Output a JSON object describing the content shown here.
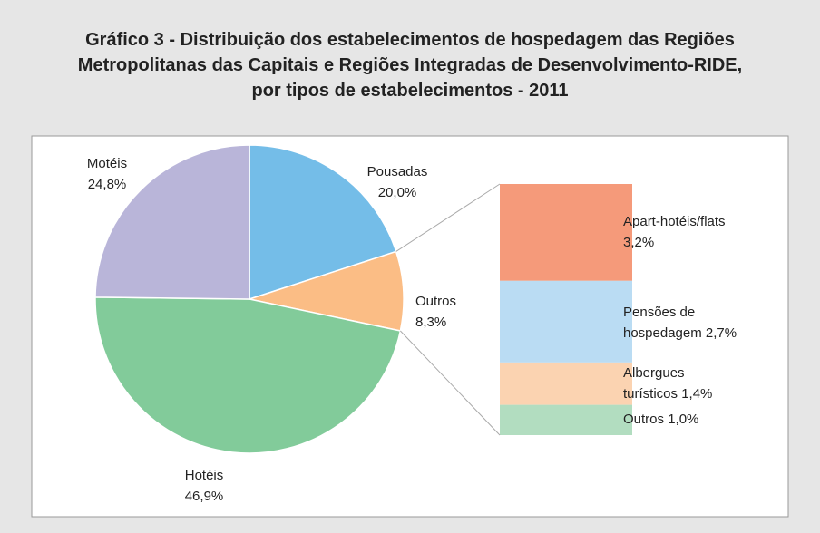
{
  "chart_data": [
    {
      "type": "pie",
      "title": "Gráfico 3 - Distribuição dos estabelecimentos de hospedagem das Regiões Metropolitanas das Capitais e Regiões Integradas de Desenvolvimento-RIDE, por tipos de estabelecimentos - 2011",
      "categories": [
        "Pousadas",
        "Outros",
        "Hotéis",
        "Motéis"
      ],
      "values": [
        20.0,
        8.3,
        46.9,
        24.8
      ],
      "value_labels": [
        "20,0%",
        "8,3%",
        "46,9%",
        "24,8%"
      ],
      "colors": [
        "#74bde8",
        "#fbbd85",
        "#82cb9a",
        "#b9b5d9"
      ]
    },
    {
      "type": "stacked-bar",
      "categories": [
        "Apart-hotéis/flats",
        "Pensões de hospedagem",
        "Albergues turísticos",
        "Outros"
      ],
      "values": [
        3.2,
        2.7,
        1.4,
        1.0
      ],
      "value_labels": [
        "3,2%",
        "2,7%",
        "1,4%",
        "1,0%"
      ],
      "colors": [
        "#f59a7a",
        "#badcf3",
        "#fbd3b1",
        "#b2ddc0"
      ]
    }
  ]
}
